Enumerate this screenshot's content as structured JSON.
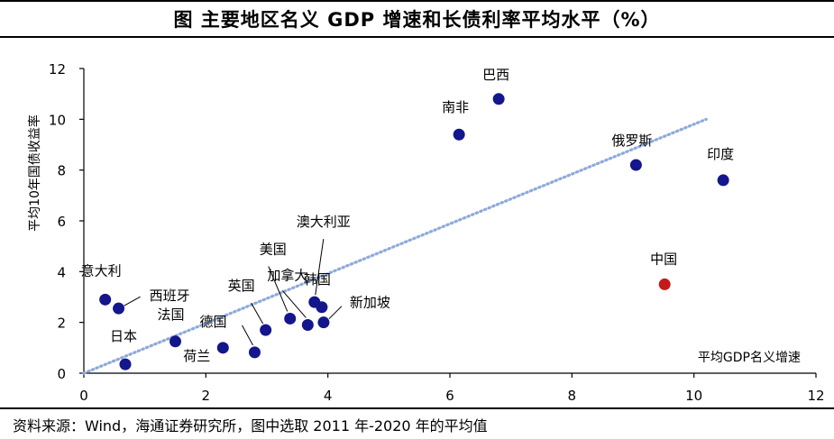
{
  "title": "图  主要地区名义 GDP 增速和长债利率平均水平（%）",
  "source": "资料来源：Wind，海通证券研究所，图中选取 2011 年-2020 年的平均值",
  "chart_data": {
    "type": "scatter",
    "xlabel": "平均GDP名义增速",
    "ylabel": "平均10年国债收益率",
    "xlim": [
      0,
      12
    ],
    "ylim": [
      0,
      12
    ],
    "xticks": [
      0,
      2,
      4,
      6,
      8,
      10,
      12
    ],
    "yticks": [
      0,
      2,
      4,
      6,
      8,
      10,
      12
    ],
    "grid": false,
    "colors": {
      "default": "#14168c",
      "highlight": "#c41a1a",
      "trend": "#8eaadb"
    },
    "trendline": {
      "x": [
        0,
        10.2
      ],
      "y": [
        0,
        10.0
      ],
      "style": "dotted"
    },
    "points": [
      {
        "name": "意大利",
        "x": 0.35,
        "y": 2.9
      },
      {
        "name": "西班牙",
        "x": 0.57,
        "y": 2.55
      },
      {
        "name": "日本",
        "x": 0.68,
        "y": 0.35
      },
      {
        "name": "法国",
        "x": 1.5,
        "y": 1.25
      },
      {
        "name": "荷兰",
        "x": 2.28,
        "y": 1.0
      },
      {
        "name": "德国",
        "x": 2.8,
        "y": 0.82
      },
      {
        "name": "英国",
        "x": 2.98,
        "y": 1.7
      },
      {
        "name": "美国",
        "x": 3.38,
        "y": 2.15
      },
      {
        "name": "加拿大",
        "x": 3.67,
        "y": 1.9
      },
      {
        "name": "澳大利亚",
        "x": 3.78,
        "y": 2.8
      },
      {
        "name": "韩国",
        "x": 3.9,
        "y": 2.6
      },
      {
        "name": "新加坡",
        "x": 3.93,
        "y": 2.0
      },
      {
        "name": "南非",
        "x": 6.15,
        "y": 9.4
      },
      {
        "name": "巴西",
        "x": 6.8,
        "y": 10.8
      },
      {
        "name": "俄罗斯",
        "x": 9.05,
        "y": 8.2
      },
      {
        "name": "印度",
        "x": 10.48,
        "y": 7.6
      },
      {
        "name": "中国",
        "x": 9.52,
        "y": 3.5,
        "highlight": true
      }
    ]
  }
}
